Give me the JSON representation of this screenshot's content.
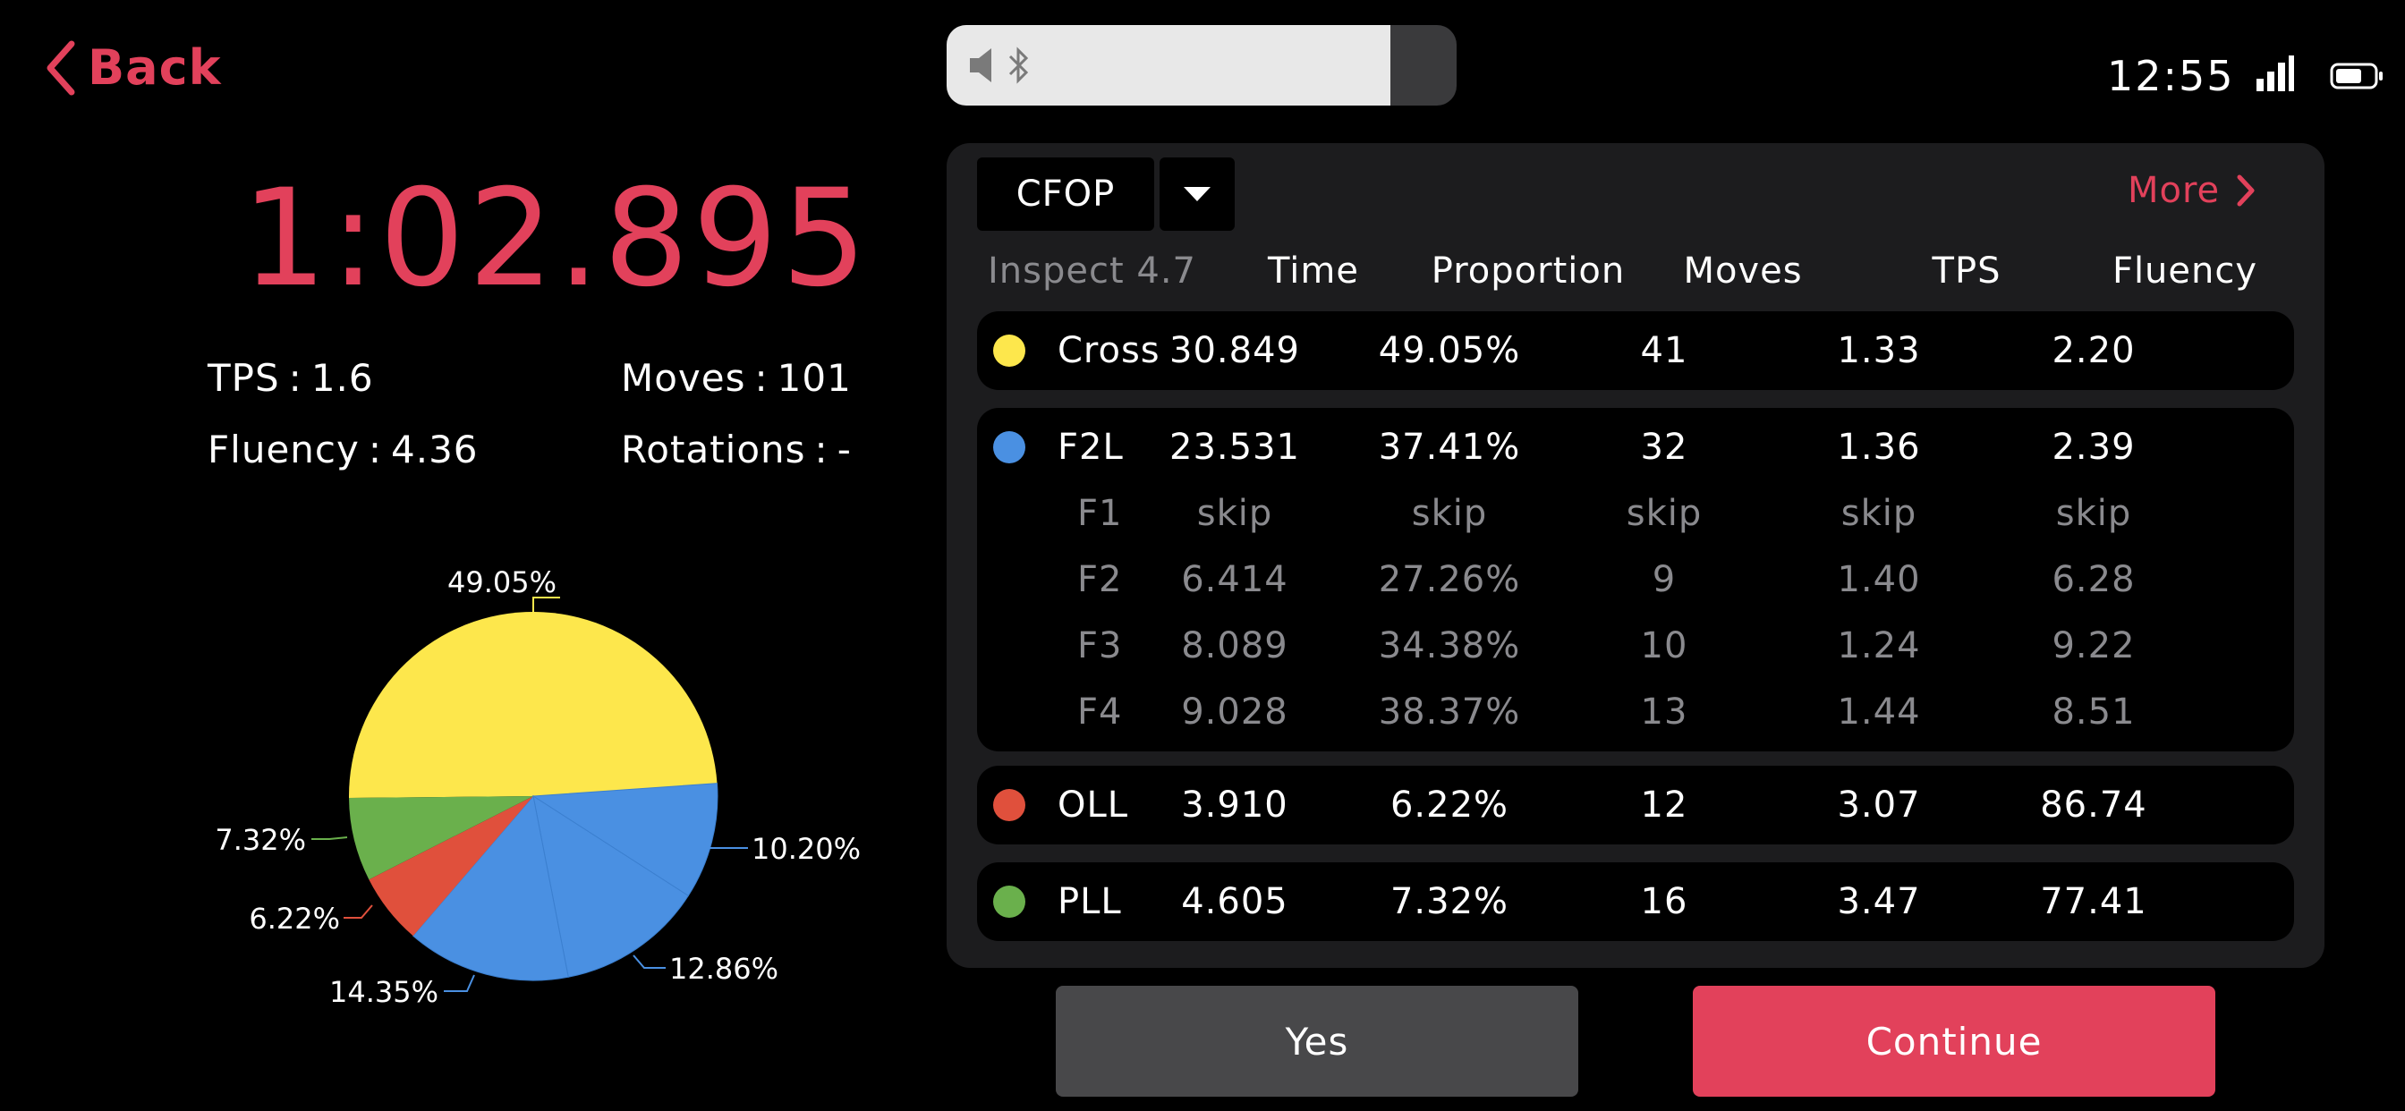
{
  "header": {
    "back_label": "Back",
    "clock": "12:55",
    "volume_level": 0.87
  },
  "solve": {
    "total_time": "1:02.895",
    "tps_label": "TPS",
    "tps_value": "1.6",
    "moves_label": "Moves",
    "moves_value": "101",
    "fluency_label": "Fluency",
    "fluency_value": "4.36",
    "rotations_label": "Rotations",
    "rotations_value": "-"
  },
  "panel": {
    "method": "CFOP",
    "more_label": "More",
    "inspect_label": "Inspect 4.7",
    "columns": [
      "Time",
      "Proportion",
      "Moves",
      "TPS",
      "Fluency"
    ],
    "groups": [
      {
        "color": "#fde74c",
        "rows": [
          {
            "name": "Cross",
            "time": "30.849",
            "proportion": "49.05%",
            "moves": "41",
            "tps": "1.33",
            "fluency": "2.20"
          }
        ]
      },
      {
        "color": "#4a90e2",
        "rows": [
          {
            "name": "F2L",
            "time": "23.531",
            "proportion": "37.41%",
            "moves": "32",
            "tps": "1.36",
            "fluency": "2.39"
          },
          {
            "name": "F1",
            "time": "skip",
            "proportion": "skip",
            "moves": "skip",
            "tps": "skip",
            "fluency": "skip"
          },
          {
            "name": "F2",
            "time": "6.414",
            "proportion": "27.26%",
            "moves": "9",
            "tps": "1.40",
            "fluency": "6.28"
          },
          {
            "name": "F3",
            "time": "8.089",
            "proportion": "34.38%",
            "moves": "10",
            "tps": "1.24",
            "fluency": "9.22"
          },
          {
            "name": "F4",
            "time": "9.028",
            "proportion": "38.37%",
            "moves": "13",
            "tps": "1.44",
            "fluency": "8.51"
          }
        ]
      },
      {
        "color": "#e0503c",
        "rows": [
          {
            "name": "OLL",
            "time": "3.910",
            "proportion": "6.22%",
            "moves": "12",
            "tps": "3.07",
            "fluency": "86.74"
          }
        ]
      },
      {
        "color": "#6ab04c",
        "rows": [
          {
            "name": "PLL",
            "time": "4.605",
            "proportion": "7.32%",
            "moves": "16",
            "tps": "3.47",
            "fluency": "77.41"
          }
        ]
      }
    ]
  },
  "buttons": {
    "yes_label": "Yes",
    "continue_label": "Continue"
  },
  "chart_data": {
    "type": "pie",
    "slices": [
      {
        "label": "49.05%",
        "value": 49.05,
        "color": "#fde74c"
      },
      {
        "label": "10.20%",
        "value": 10.2,
        "color": "#4a90e2"
      },
      {
        "label": "12.86%",
        "value": 12.86,
        "color": "#4a90e2"
      },
      {
        "label": "14.35%",
        "value": 14.35,
        "color": "#4a90e2"
      },
      {
        "label": "6.22%",
        "value": 6.22,
        "color": "#e0503c"
      },
      {
        "label": "7.32%",
        "value": 7.32,
        "color": "#6ab04c"
      }
    ]
  }
}
